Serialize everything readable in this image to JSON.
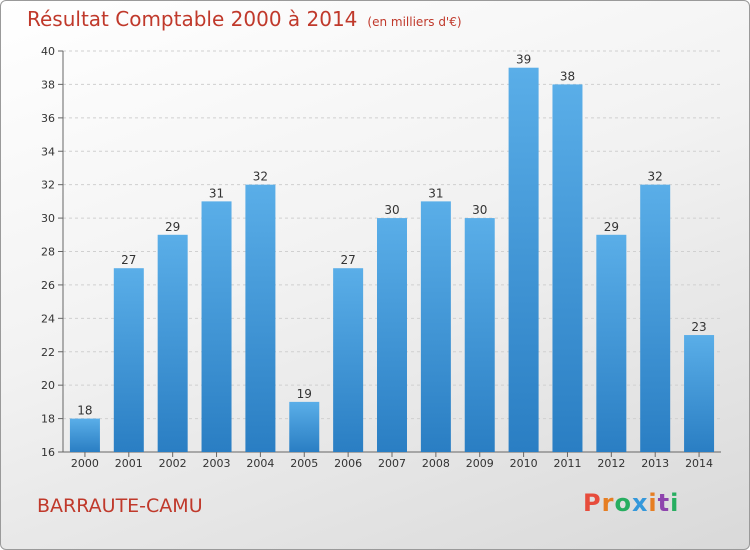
{
  "header": {
    "title": "Résultat Comptable 2000 à 2014",
    "subtitle": "(en milliers d'€)"
  },
  "footer": {
    "city": "BARRAUTE-CAMU",
    "logo": "Proxiti"
  },
  "colors": {
    "title": "#c0392b",
    "bar_top": "#5aaee8",
    "bar_bottom": "#2a7ec3",
    "logo_letters": [
      "#e74c3c",
      "#e67e22",
      "#27ae60",
      "#3498db",
      "#e67e22",
      "#8e44ad",
      "#27ae60"
    ]
  },
  "chart_data": {
    "type": "bar",
    "categories": [
      "2000",
      "2001",
      "2002",
      "2003",
      "2004",
      "2005",
      "2006",
      "2007",
      "2008",
      "2009",
      "2010",
      "2011",
      "2012",
      "2013",
      "2014"
    ],
    "values": [
      18,
      27,
      29,
      31,
      32,
      19,
      27,
      30,
      31,
      30,
      39,
      38,
      29,
      32,
      23
    ],
    "ylim": [
      16,
      40
    ],
    "yticks": [
      16,
      18,
      20,
      22,
      24,
      26,
      28,
      30,
      32,
      34,
      36,
      38,
      40
    ],
    "grid": true,
    "data_labels": true
  }
}
